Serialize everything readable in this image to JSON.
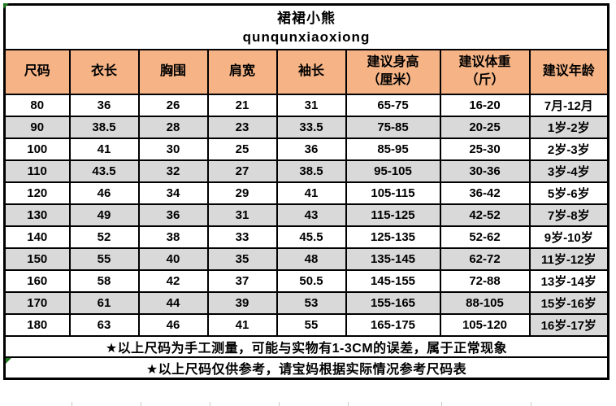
{
  "title": {
    "cn": "裙裙小熊",
    "en": "qunqunxiaoxiong"
  },
  "table": {
    "columns": [
      "尺码",
      "衣长",
      "胸围",
      "肩宽",
      "袖长",
      "建议身高\n（厘米）",
      "建议体重\n（斤）",
      "建议年龄"
    ],
    "rows": [
      [
        "80",
        "36",
        "26",
        "21",
        "31",
        "65-75",
        "16-20",
        "7月-12月"
      ],
      [
        "90",
        "38.5",
        "28",
        "23",
        "33.5",
        "75-85",
        "20-25",
        "1岁-2岁"
      ],
      [
        "100",
        "41",
        "30",
        "25",
        "36",
        "85-95",
        "25-30",
        "2岁-3岁"
      ],
      [
        "110",
        "43.5",
        "32",
        "27",
        "38.5",
        "95-105",
        "30-36",
        "3岁-4岁"
      ],
      [
        "120",
        "46",
        "34",
        "29",
        "41",
        "105-115",
        "36-42",
        "5岁-6岁"
      ],
      [
        "130",
        "49",
        "36",
        "31",
        "43",
        "115-125",
        "42-52",
        "7岁-8岁"
      ],
      [
        "140",
        "52",
        "38",
        "33",
        "45.5",
        "125-135",
        "52-62",
        "9岁-10岁"
      ],
      [
        "150",
        "55",
        "40",
        "35",
        "48",
        "135-145",
        "62-72",
        "11岁-12岁"
      ],
      [
        "160",
        "58",
        "42",
        "37",
        "50.5",
        "145-155",
        "72-88",
        "13岁-14岁"
      ],
      [
        "170",
        "61",
        "44",
        "39",
        "53",
        "155-165",
        "88-105",
        "15岁-16岁"
      ],
      [
        "180",
        "63",
        "46",
        "41",
        "55",
        "165-175",
        "105-120",
        "16岁-17岁"
      ]
    ],
    "stripe_exception": {
      "row_index": 10,
      "col_index": 7
    }
  },
  "notes": [
    "★以上尺码为手工测量，可能与实物有1-3CM的误差，属于正常现象",
    "★以上尺码仅供参考，请宝妈根据实际情况参考尺码表"
  ],
  "colors": {
    "header_bg": "#F6B486",
    "stripe_bg": "#D9D9D9",
    "border": "#000000",
    "error_marker_green": "#1F7A1F"
  }
}
